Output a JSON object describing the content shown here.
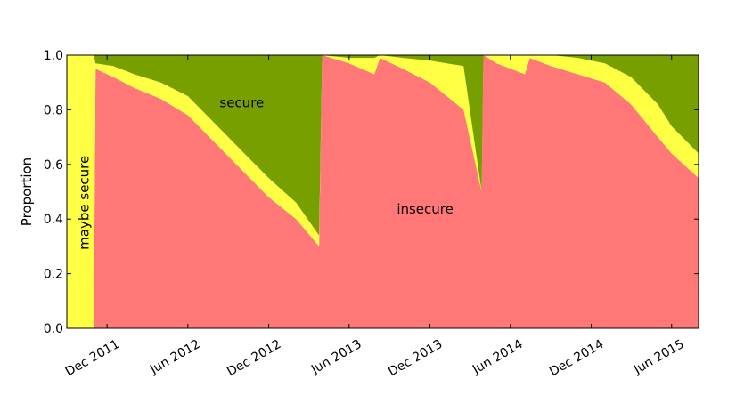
{
  "chart_data": {
    "type": "area",
    "stacked": true,
    "xlabel": "",
    "ylabel": "Proportion",
    "xlim": [
      "2011-09-01",
      "2015-08-01"
    ],
    "ylim": [
      0.0,
      1.0
    ],
    "yticks": [
      0.0,
      0.2,
      0.4,
      0.6,
      0.8,
      1.0
    ],
    "ytick_labels": [
      "0.0",
      "0.2",
      "0.4",
      "0.6",
      "0.8",
      "1.0"
    ],
    "xticks": [
      "2011-12-01",
      "2012-06-01",
      "2012-12-01",
      "2013-06-01",
      "2013-12-01",
      "2014-06-01",
      "2014-12-01",
      "2015-06-01"
    ],
    "xtick_labels": [
      "Dec 2011",
      "Jun 2012",
      "Dec 2012",
      "Jun 2013",
      "Dec 2013",
      "Jun 2014",
      "Dec 2014",
      "Jun 2015"
    ],
    "grid": false,
    "legend": "none",
    "x": [
      "2011-09-01",
      "2011-11-01",
      "2011-11-05",
      "2011-12-15",
      "2012-02-01",
      "2012-04-01",
      "2012-06-01",
      "2012-08-01",
      "2012-10-01",
      "2012-12-01",
      "2013-02-01",
      "2013-03-25",
      "2013-04-01",
      "2013-06-01",
      "2013-07-28",
      "2013-08-10",
      "2013-10-01",
      "2013-12-01",
      "2014-02-15",
      "2014-03-28",
      "2014-04-01",
      "2014-05-01",
      "2014-07-04",
      "2014-07-15",
      "2014-09-01",
      "2014-11-01",
      "2015-01-01",
      "2015-03-01",
      "2015-05-01",
      "2015-06-01",
      "2015-08-01"
    ],
    "series": [
      {
        "key": "insecure",
        "color": "#ff7777",
        "values": [
          0.0,
          0.0,
          0.95,
          0.92,
          0.88,
          0.84,
          0.78,
          0.68,
          0.58,
          0.48,
          0.4,
          0.3,
          1.0,
          0.97,
          0.93,
          0.99,
          0.95,
          0.9,
          0.8,
          0.5,
          1.0,
          0.97,
          0.93,
          0.99,
          0.96,
          0.93,
          0.9,
          0.82,
          0.7,
          0.64,
          0.55
        ]
      },
      {
        "key": "maybe-secure",
        "color": "#ffff44",
        "values": [
          1.0,
          1.0,
          0.02,
          0.04,
          0.05,
          0.06,
          0.07,
          0.07,
          0.07,
          0.07,
          0.06,
          0.04,
          0.0,
          0.02,
          0.06,
          0.01,
          0.04,
          0.08,
          0.16,
          0.0,
          0.0,
          0.03,
          0.07,
          0.01,
          0.04,
          0.06,
          0.07,
          0.1,
          0.12,
          0.1,
          0.09
        ]
      },
      {
        "key": "secure",
        "color": "#779f00",
        "values": [
          0.0,
          0.0,
          0.03,
          0.04,
          0.07,
          0.1,
          0.15,
          0.25,
          0.35,
          0.45,
          0.54,
          0.66,
          0.0,
          0.01,
          0.01,
          0.0,
          0.01,
          0.02,
          0.04,
          0.5,
          0.0,
          0.0,
          0.0,
          0.0,
          0.0,
          0.01,
          0.03,
          0.08,
          0.18,
          0.26,
          0.36
        ]
      }
    ],
    "annotations": [
      {
        "text": "secure",
        "x": "2012-10-01",
        "y": 0.81
      },
      {
        "text": "insecure",
        "x": "2013-11-20",
        "y": 0.42
      },
      {
        "text": "maybe secure",
        "x": "2011-10-20",
        "y": 0.46,
        "rotation": -90
      }
    ]
  }
}
